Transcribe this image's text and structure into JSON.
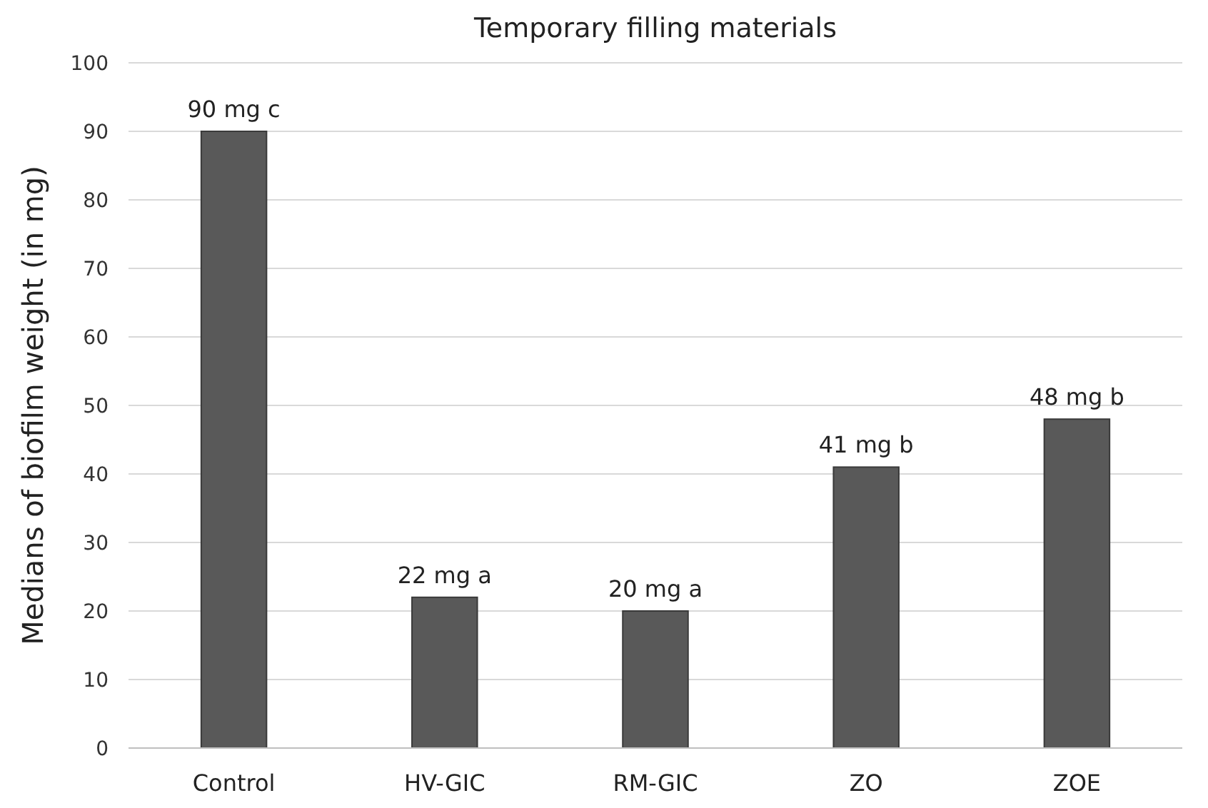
{
  "chart_data": {
    "type": "bar",
    "title": "Temporary filling materials",
    "ylabel": "Medians of biofilm weight (in mg)",
    "categories": [
      "Control",
      "HV-GIC",
      "RM-GIC",
      "ZO",
      "ZOE"
    ],
    "values": [
      90,
      22,
      20,
      41,
      48
    ],
    "value_labels": [
      "90 mg c",
      "22 mg a",
      "20 mg a",
      "41 mg b",
      "48 mg b"
    ],
    "color": "#595959",
    "ylim": [
      0,
      100
    ],
    "yticks": [
      0,
      10,
      20,
      30,
      40,
      50,
      60,
      70,
      80,
      90,
      100
    ],
    "grid": "y"
  }
}
